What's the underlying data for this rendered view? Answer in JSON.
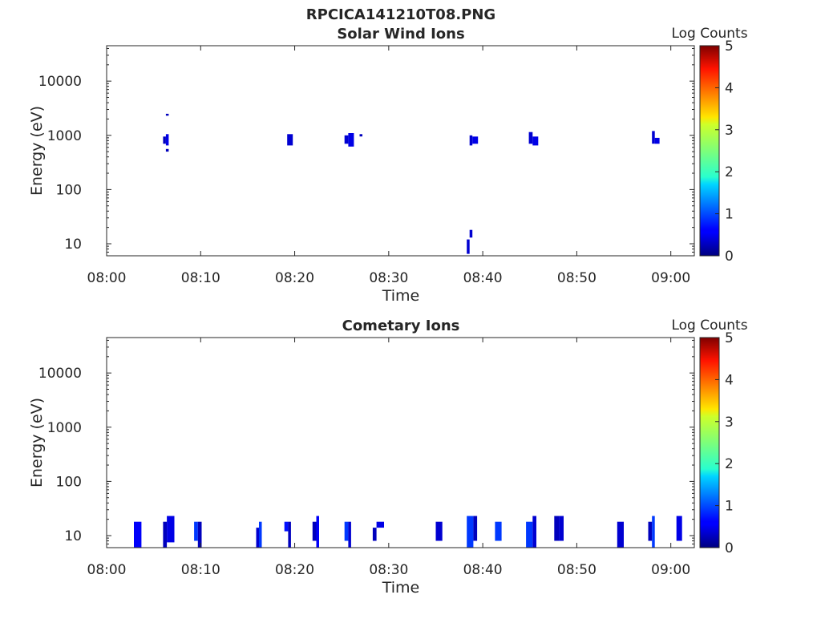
{
  "figure": {
    "title": "RPCICA141210T08.PNG"
  },
  "colorbar": {
    "label": "Log Counts",
    "ticks": [
      "0",
      "1",
      "2",
      "3",
      "4",
      "5"
    ],
    "range": [
      0,
      5
    ],
    "colormap": "jet"
  },
  "chart_data": [
    {
      "type": "heatmap",
      "title": "Solar Wind Ions",
      "xlabel": "Time",
      "ylabel": "Energy (eV)",
      "x_ticks": [
        "08:00",
        "08:10",
        "08:20",
        "08:30",
        "08:40",
        "08:50",
        "09:00"
      ],
      "xlim_minutes": [
        0,
        62.5
      ],
      "y_scale": "log",
      "ylim": [
        6,
        45000
      ],
      "y_ticks": [
        "10",
        "100",
        "1000",
        "10000"
      ],
      "cells": [
        {
          "t": 6.0,
          "dt": 0.3,
          "e_lo": 700,
          "e_hi": 950,
          "v": 0.3
        },
        {
          "t": 6.3,
          "dt": 0.3,
          "e_lo": 650,
          "e_hi": 1050,
          "v": 0.5
        },
        {
          "t": 6.3,
          "dt": 0.3,
          "e_lo": 2300,
          "e_hi": 2500,
          "v": 0.3
        },
        {
          "t": 6.3,
          "dt": 0.3,
          "e_lo": 500,
          "e_hi": 560,
          "v": 0.3
        },
        {
          "t": 19.2,
          "dt": 0.6,
          "e_lo": 650,
          "e_hi": 1050,
          "v": 0.4
        },
        {
          "t": 25.3,
          "dt": 0.4,
          "e_lo": 700,
          "e_hi": 1000,
          "v": 0.4
        },
        {
          "t": 25.7,
          "dt": 0.6,
          "e_lo": 620,
          "e_hi": 1100,
          "v": 0.5
        },
        {
          "t": 26.9,
          "dt": 0.3,
          "e_lo": 950,
          "e_hi": 1050,
          "v": 0.3
        },
        {
          "t": 38.3,
          "dt": 0.3,
          "e_lo": 6.5,
          "e_hi": 12,
          "v": 0.4
        },
        {
          "t": 38.6,
          "dt": 0.3,
          "e_lo": 13,
          "e_hi": 18,
          "v": 0.4
        },
        {
          "t": 38.6,
          "dt": 0.3,
          "e_lo": 650,
          "e_hi": 1000,
          "v": 0.4
        },
        {
          "t": 38.9,
          "dt": 0.6,
          "e_lo": 700,
          "e_hi": 950,
          "v": 0.5
        },
        {
          "t": 44.9,
          "dt": 0.4,
          "e_lo": 700,
          "e_hi": 1150,
          "v": 0.4
        },
        {
          "t": 45.3,
          "dt": 0.6,
          "e_lo": 650,
          "e_hi": 950,
          "v": 0.5
        },
        {
          "t": 58.0,
          "dt": 0.3,
          "e_lo": 700,
          "e_hi": 1200,
          "v": 0.4
        },
        {
          "t": 58.3,
          "dt": 0.5,
          "e_lo": 700,
          "e_hi": 900,
          "v": 0.5
        }
      ]
    },
    {
      "type": "heatmap",
      "title": "Cometary Ions",
      "xlabel": "Time",
      "ylabel": "Energy (eV)",
      "x_ticks": [
        "08:00",
        "08:10",
        "08:20",
        "08:30",
        "08:40",
        "08:50",
        "09:00"
      ],
      "xlim_minutes": [
        0,
        62.5
      ],
      "y_scale": "log",
      "ylim": [
        6,
        45000
      ],
      "y_ticks": [
        "10",
        "100",
        "1000",
        "10000"
      ],
      "cells": [
        {
          "t": 2.9,
          "dt": 0.8,
          "e_lo": 6,
          "e_hi": 18,
          "v": 0.6
        },
        {
          "t": 6.0,
          "dt": 0.4,
          "e_lo": 6,
          "e_hi": 18,
          "v": 0.3
        },
        {
          "t": 6.4,
          "dt": 0.8,
          "e_lo": 7.5,
          "e_hi": 23,
          "v": 0.5
        },
        {
          "t": 9.3,
          "dt": 0.4,
          "e_lo": 8,
          "e_hi": 18,
          "v": 0.9
        },
        {
          "t": 9.7,
          "dt": 0.4,
          "e_lo": 6,
          "e_hi": 18,
          "v": 0.3
        },
        {
          "t": 15.9,
          "dt": 0.3,
          "e_lo": 6,
          "e_hi": 14,
          "v": 0.4
        },
        {
          "t": 16.2,
          "dt": 0.3,
          "e_lo": 6,
          "e_hi": 18,
          "v": 0.9
        },
        {
          "t": 18.9,
          "dt": 0.4,
          "e_lo": 12,
          "e_hi": 18,
          "v": 0.7
        },
        {
          "t": 19.3,
          "dt": 0.3,
          "e_lo": 6,
          "e_hi": 18,
          "v": 0.3
        },
        {
          "t": 21.9,
          "dt": 0.4,
          "e_lo": 8,
          "e_hi": 18,
          "v": 0.3
        },
        {
          "t": 22.3,
          "dt": 0.3,
          "e_lo": 6,
          "e_hi": 23,
          "v": 0.6
        },
        {
          "t": 25.3,
          "dt": 0.4,
          "e_lo": 8,
          "e_hi": 18,
          "v": 0.9
        },
        {
          "t": 25.7,
          "dt": 0.3,
          "e_lo": 6,
          "e_hi": 18,
          "v": 0.4
        },
        {
          "t": 28.3,
          "dt": 0.4,
          "e_lo": 8,
          "e_hi": 14,
          "v": 0.3
        },
        {
          "t": 28.7,
          "dt": 0.8,
          "e_lo": 14,
          "e_hi": 18,
          "v": 0.5
        },
        {
          "t": 35.0,
          "dt": 0.7,
          "e_lo": 8,
          "e_hi": 18,
          "v": 0.4
        },
        {
          "t": 38.3,
          "dt": 0.7,
          "e_lo": 6,
          "e_hi": 23,
          "v": 0.9
        },
        {
          "t": 39.0,
          "dt": 0.4,
          "e_lo": 8,
          "e_hi": 23,
          "v": 0.3
        },
        {
          "t": 41.3,
          "dt": 0.7,
          "e_lo": 8,
          "e_hi": 18,
          "v": 0.9
        },
        {
          "t": 44.6,
          "dt": 0.7,
          "e_lo": 6,
          "e_hi": 18,
          "v": 0.9
        },
        {
          "t": 45.3,
          "dt": 0.4,
          "e_lo": 6,
          "e_hi": 23,
          "v": 0.4
        },
        {
          "t": 47.6,
          "dt": 0.5,
          "e_lo": 8,
          "e_hi": 23,
          "v": 0.3
        },
        {
          "t": 48.1,
          "dt": 0.5,
          "e_lo": 8,
          "e_hi": 23,
          "v": 0.4
        },
        {
          "t": 54.3,
          "dt": 0.7,
          "e_lo": 6,
          "e_hi": 18,
          "v": 0.4
        },
        {
          "t": 57.6,
          "dt": 0.4,
          "e_lo": 8,
          "e_hi": 18,
          "v": 0.3
        },
        {
          "t": 58.0,
          "dt": 0.3,
          "e_lo": 6,
          "e_hi": 23,
          "v": 0.9
        },
        {
          "t": 60.6,
          "dt": 0.6,
          "e_lo": 8,
          "e_hi": 23,
          "v": 0.5
        }
      ]
    }
  ]
}
